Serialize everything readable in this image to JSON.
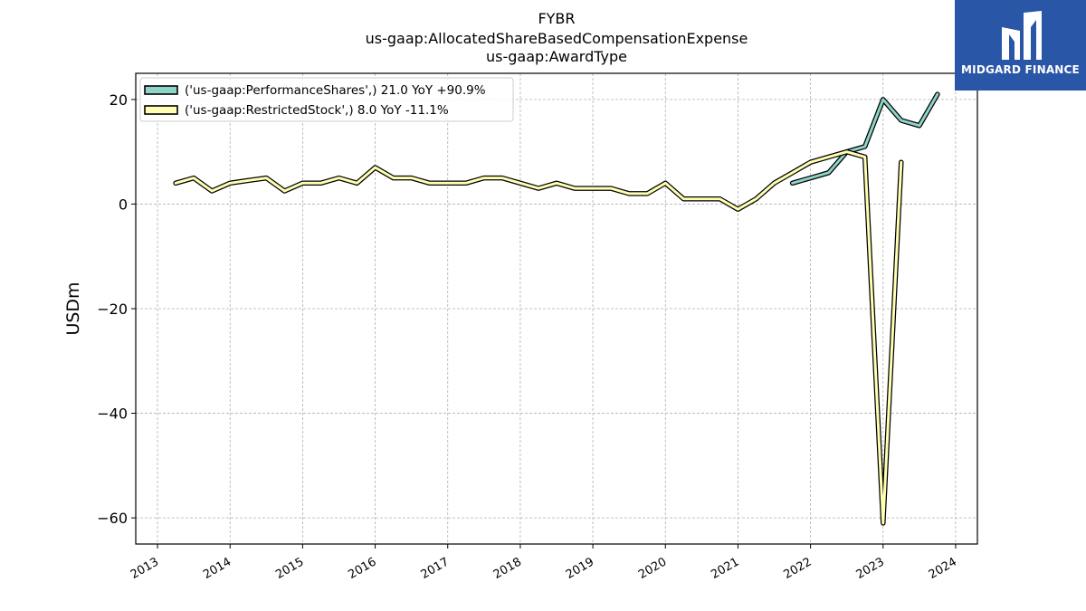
{
  "chart_data": {
    "type": "line",
    "title": "FYBR",
    "subtitle_lines": [
      "us-gaap:AllocatedShareBasedCompensationExpense",
      "us-gaap:AwardType"
    ],
    "xlabel": "",
    "ylabel": "USDm",
    "xlim": [
      2012.7,
      2024.3
    ],
    "ylim": [
      -65,
      25
    ],
    "x_ticks": [
      2013,
      2014,
      2015,
      2016,
      2017,
      2018,
      2019,
      2020,
      2021,
      2022,
      2023,
      2024
    ],
    "y_ticks": [
      20,
      0,
      -20,
      -40,
      -60
    ],
    "y_tick_labels": [
      "20",
      "0",
      "−20",
      "−40",
      "−60"
    ],
    "grid": true,
    "legend_position": "top-left",
    "series": [
      {
        "name": "('us-gaap:PerformanceShares',) 21.0 YoY +90.9%",
        "color": "#8dd3c7",
        "x": [
          2021.75,
          2022.0,
          2022.25,
          2022.5,
          2022.75,
          2023.0,
          2023.25,
          2023.5,
          2023.75
        ],
        "y": [
          4.0,
          5.0,
          6.0,
          10.0,
          11.0,
          20.0,
          16.0,
          15.0,
          21.0
        ]
      },
      {
        "name": "('us-gaap:RestrictedStock',) 8.0 YoY -11.1%",
        "color": "#ffffb3",
        "x": [
          2013.25,
          2013.5,
          2013.75,
          2014.0,
          2014.25,
          2014.5,
          2014.75,
          2015.0,
          2015.25,
          2015.5,
          2015.75,
          2016.0,
          2016.25,
          2016.5,
          2016.75,
          2017.0,
          2017.25,
          2017.5,
          2017.75,
          2018.0,
          2018.25,
          2018.5,
          2018.75,
          2019.0,
          2019.25,
          2019.5,
          2019.75,
          2020.0,
          2020.25,
          2020.5,
          2020.75,
          2021.0,
          2021.25,
          2021.5,
          2021.75,
          2022.0,
          2022.25,
          2022.5,
          2022.75,
          2023.0,
          2023.25
        ],
        "y": [
          4.0,
          5.0,
          2.5,
          4.0,
          4.5,
          5.0,
          2.5,
          4.0,
          4.0,
          5.0,
          4.0,
          7.0,
          5.0,
          5.0,
          4.0,
          4.0,
          4.0,
          5.0,
          5.0,
          4.0,
          3.0,
          4.0,
          3.0,
          3.0,
          3.0,
          2.0,
          2.0,
          4.0,
          1.0,
          1.0,
          1.0,
          -1.0,
          1.0,
          4.0,
          6.0,
          8.0,
          9.0,
          10.0,
          9.0,
          -61.0,
          8.0
        ]
      }
    ]
  },
  "logo": {
    "text": "MIDGARD FINANCE",
    "color": "#2a56a8"
  }
}
